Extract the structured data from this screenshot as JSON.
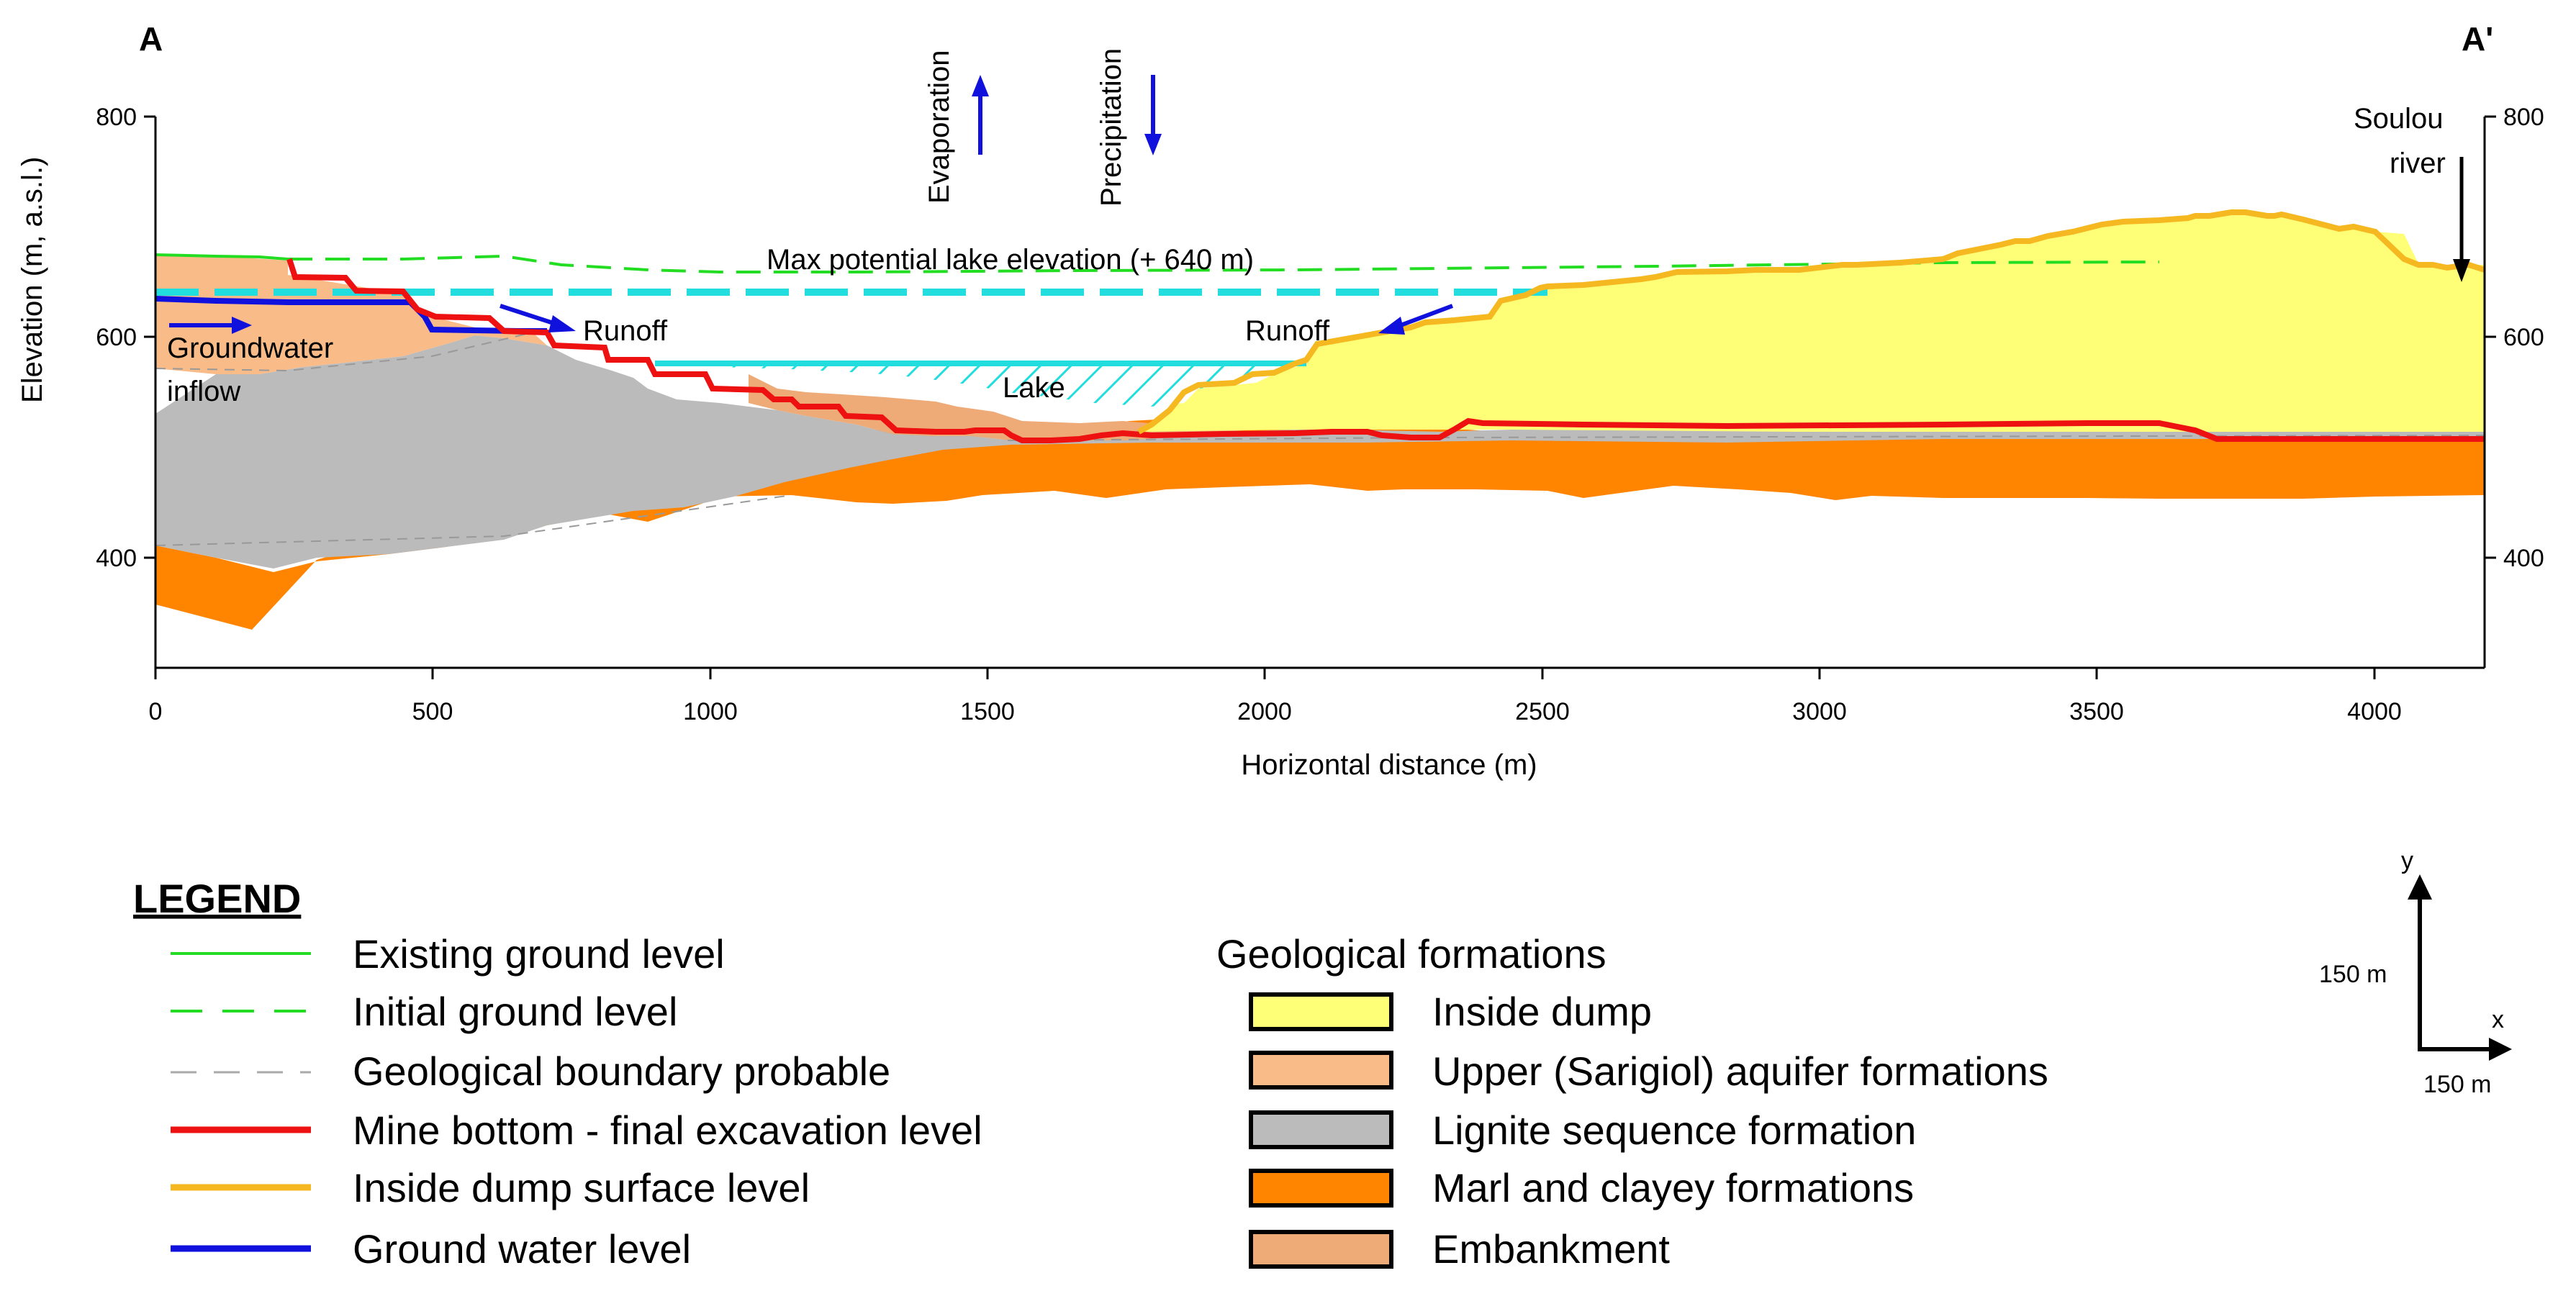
{
  "figure": {
    "corner_left": "A",
    "corner_right": "A'",
    "x_axis_label": "Horizontal distance (m)",
    "y_axis_label": "Elevation (m, a.s.l.)",
    "x_ticks": [
      "0",
      "500",
      "1000",
      "1500",
      "2000",
      "2500",
      "3000",
      "3500",
      "4000"
    ],
    "y_ticks_left": [
      "400",
      "600",
      "800"
    ],
    "y_ticks_right": [
      "400",
      "600",
      "800"
    ],
    "x_range": [
      0,
      4200
    ],
    "y_range": [
      300,
      800
    ]
  },
  "annotations": {
    "evaporation": "Evaporation",
    "precipitation": "Precipitation",
    "max_lake": "Max potential lake elevation (+ 640 m)",
    "runoff_left": "Runoff",
    "runoff_right": "Runoff",
    "lake": "Lake",
    "groundwater_line1": "Groundwater",
    "groundwater_line2": "inflow",
    "river_line1": "Soulou",
    "river_line2": "river"
  },
  "legend": {
    "title": "LEGEND",
    "lines": [
      {
        "label": "Existing ground level",
        "color": "#22dd22"
      },
      {
        "label": "Initial ground level",
        "color": "#22dd22"
      },
      {
        "label": "Geological boundary probable",
        "color": "#aaaaaa"
      },
      {
        "label": "Mine bottom - final excavation level",
        "color": "#ee1111"
      },
      {
        "label": "Inside dump surface level",
        "color": "#f5b820"
      },
      {
        "label": "Ground water level",
        "color": "#1111dd"
      }
    ],
    "formations_title": "Geological formations",
    "formations": [
      {
        "label": "Inside dump",
        "color": "#ffff77"
      },
      {
        "label": "Upper (Sarigiol) aquifer formations",
        "color": "#f9bb88"
      },
      {
        "label": "Lignite sequence formation",
        "color": "#bbbbbb"
      },
      {
        "label": "Marl and clayey formations",
        "color": "#ff8400"
      },
      {
        "label": "Embankment",
        "color": "#eeaa77"
      }
    ]
  },
  "scale": {
    "y_label": "y",
    "x_label": "x",
    "y_length": "150 m",
    "x_length": "150 m"
  },
  "colors": {
    "dump": "#ffff77",
    "aquifer": "#f9bb88",
    "lignite": "#bbbbbb",
    "marl": "#ff8400",
    "embankment": "#eeaa77",
    "lake_hatch": "#22dddd",
    "max_lake_line": "#22dddd",
    "mine_bottom": "#ee1111",
    "dump_surface": "#f5b820",
    "groundwater": "#1111dd",
    "ground_level": "#22dd22"
  }
}
